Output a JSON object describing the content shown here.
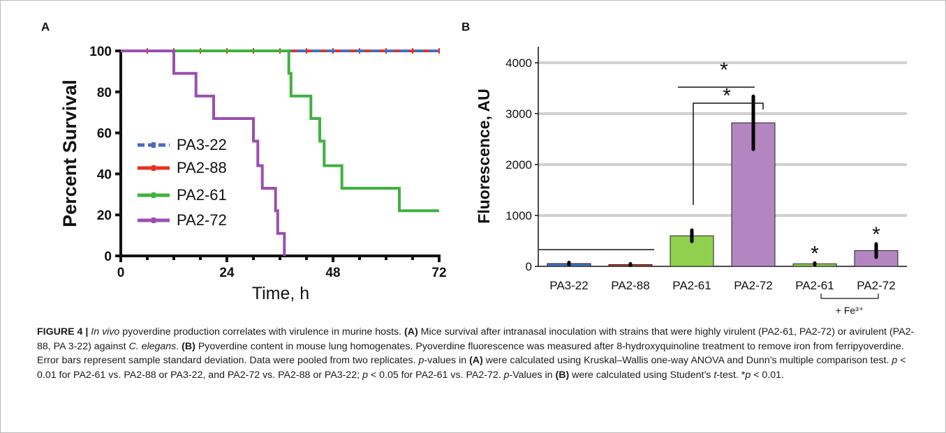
{
  "chart_data": [
    {
      "panel": "A",
      "type": "line",
      "step": true,
      "xlabel": "Time, h",
      "ylabel": "Percent Survival",
      "xlim": [
        0,
        72
      ],
      "ylim": [
        0,
        100
      ],
      "xticks": [
        0,
        24,
        48,
        72
      ],
      "yticks": [
        0,
        20,
        40,
        60,
        80,
        100
      ],
      "legend_position": "center-left",
      "series": [
        {
          "name": "PA3-22",
          "color": "#4a6bbf",
          "dash": true,
          "points": [
            [
              0,
              100
            ],
            [
              72,
              100
            ]
          ]
        },
        {
          "name": "PA2-88",
          "color": "#e8321e",
          "dash": false,
          "points": [
            [
              0,
              100
            ],
            [
              72,
              100
            ]
          ]
        },
        {
          "name": "PA2-61",
          "color": "#3fb23f",
          "dash": false,
          "points": [
            [
              0,
              100
            ],
            [
              38,
              100
            ],
            [
              38,
              89
            ],
            [
              38.5,
              89
            ],
            [
              38.5,
              78
            ],
            [
              43,
              78
            ],
            [
              43,
              67
            ],
            [
              45,
              67
            ],
            [
              45,
              56
            ],
            [
              46,
              56
            ],
            [
              46,
              44
            ],
            [
              50,
              44
            ],
            [
              50,
              33
            ],
            [
              63,
              33
            ],
            [
              63,
              22
            ],
            [
              72,
              22
            ]
          ]
        },
        {
          "name": "PA2-72",
          "color": "#9a4fb0",
          "dash": false,
          "points": [
            [
              0,
              100
            ],
            [
              12,
              100
            ],
            [
              12,
              89
            ],
            [
              17,
              89
            ],
            [
              17,
              78
            ],
            [
              21,
              78
            ],
            [
              21,
              67
            ],
            [
              30,
              67
            ],
            [
              30,
              56
            ],
            [
              31,
              56
            ],
            [
              31,
              44
            ],
            [
              32,
              44
            ],
            [
              32,
              33
            ],
            [
              35,
              33
            ],
            [
              35,
              22
            ],
            [
              35.5,
              22
            ],
            [
              35.5,
              11
            ],
            [
              37,
              11
            ],
            [
              37,
              0
            ]
          ]
        }
      ]
    },
    {
      "panel": "B",
      "type": "bar",
      "ylabel": "Fluorescence, AU",
      "ylim": [
        0,
        4300
      ],
      "yticks": [
        0,
        1000,
        2000,
        3000,
        4000
      ],
      "grid": true,
      "categories": [
        "PA3-22",
        "PA2-88",
        "PA2-61",
        "PA2-72",
        "PA2-61",
        "PA2-72"
      ],
      "values": [
        55,
        35,
        600,
        2820,
        50,
        310
      ],
      "errors": [
        20,
        15,
        110,
        520,
        15,
        130
      ],
      "colors": [
        "#4472c4",
        "#c0392b",
        "#8fd14f",
        "#b386c2",
        "#8fd14f",
        "#b386c2"
      ],
      "stars_on_bars": [
        4,
        5
      ],
      "star_symbol": "*",
      "group_label": "+ Fe³⁺"
    }
  ],
  "labels": {
    "panel_a": "A",
    "panel_b": "B"
  },
  "caption": {
    "figure_label": "FIGURE 4 |",
    "title_italic": "In vivo",
    "title_rest": " pyoverdine production correlates with virulence in murine hosts.",
    "a_label": "(A)",
    "a_text_1": " Mice survival after intranasal inoculation with strains that were highly virulent (PA2-61, PA2-72) or avirulent (PA2-88, PA 3-22) against ",
    "a_species": "C. elegans",
    "a_text_2": ". ",
    "b_label": "(B)",
    "b_text": " Pyoverdine content in mouse lung homogenates. Pyoverdine fluorescence was measured after 8-hydroxyquinoline treatment to remove iron from ferripyoverdine. Error bars represent sample standard deviation. Data were pooled from two replicates.",
    "p_italic_1": "p",
    "line4_1": "-values in ",
    "line4_a": "(A)",
    "line4_2": " were calculated using Kruskal–Wallis one-way ANOVA and Dunn’s multiple comparison test. ",
    "p_italic_2": "p",
    "line4_3": " < 0.01 for PA2-61 vs. PA2-88 or PA3-22, and PA2-72 vs. PA2-88 or PA3-22; ",
    "p_italic_3": "p",
    "line4_4": " < 0.05 for PA2-61 vs. PA2-72. ",
    "p_italic_4": "p",
    "line4_5": "-Values in ",
    "line4_b": "(B)",
    "line4_6": " were calculated using Student’s ",
    "t_italic": "t",
    "line4_7": "-test. *",
    "p_italic_5": "p",
    "line4_8": " < 0.01."
  }
}
